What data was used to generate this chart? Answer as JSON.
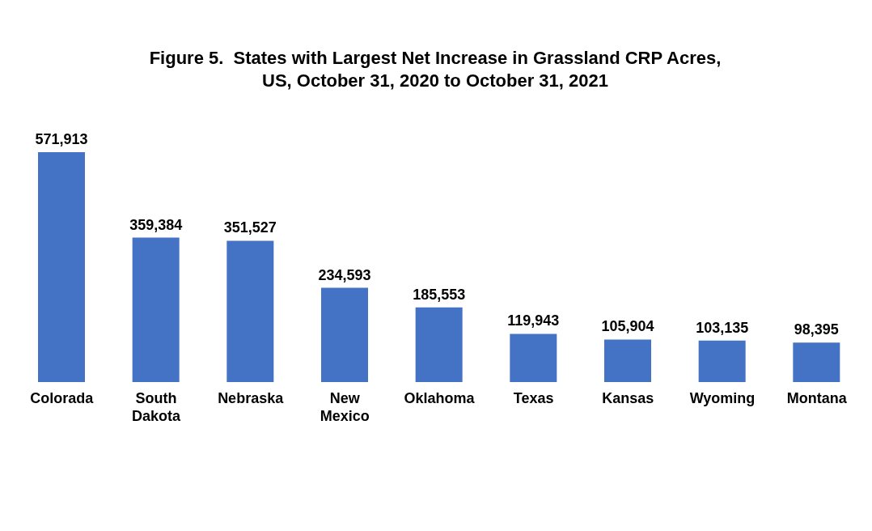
{
  "chart_data": {
    "type": "bar",
    "title": "Figure 5.  States with Largest Net Increase in Grassland CRP Acres,\nUS, October 31, 2020 to October 31, 2021",
    "categories": [
      "Colorada",
      "South Dakota",
      "Nebraska",
      "New Mexico",
      "Oklahoma",
      "Texas",
      "Kansas",
      "Wyoming",
      "Montana"
    ],
    "values": [
      571913,
      359384,
      351527,
      234593,
      185553,
      119943,
      105904,
      103135,
      98395
    ],
    "value_labels": [
      "571,913",
      "359,384",
      "351,527",
      "234,593",
      "185,553",
      "119,943",
      "105,904",
      "103,135",
      "98,395"
    ],
    "color": "#4472c4",
    "grid": false,
    "legend": false
  }
}
